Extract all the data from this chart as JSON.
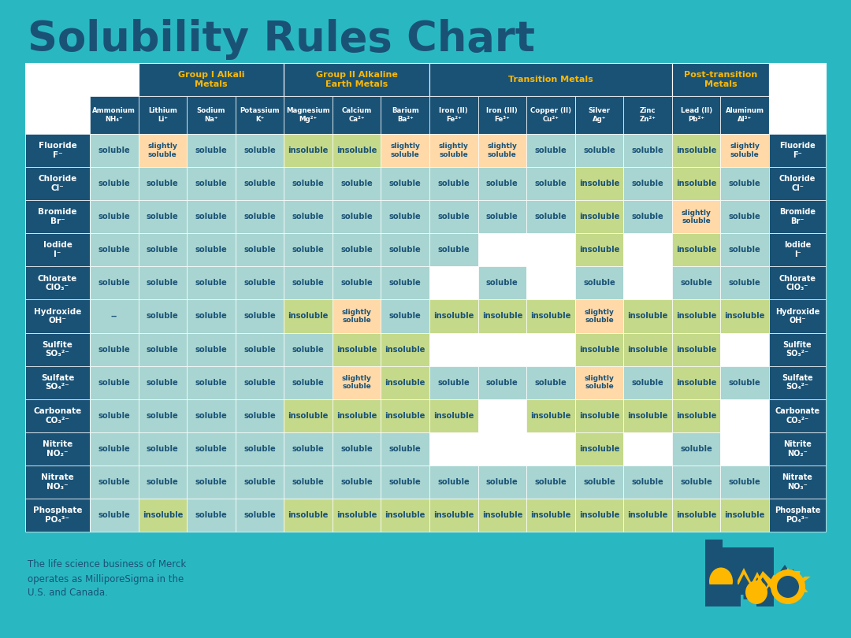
{
  "title": "Solubility Rules Chart",
  "bg_color": "#29B8C2",
  "header_blue": "#1A5276",
  "header_gold": "#FFB800",
  "cell_soluble_bg": "#A8D5D1",
  "cell_insoluble_bg": "#C5D98A",
  "cell_slightly_bg": "#FFD9A8",
  "cell_empty_bg": "#FFFFFF",
  "cell_text_color": "#1A5276",
  "title_color": "#1A5276",
  "footer_text_color": "#1A5276",
  "col_headers": [
    "Ammonium\nNH₄⁺",
    "Lithium\nLi⁺",
    "Sodium\nNa⁺",
    "Potassium\nK⁺",
    "Magnesium\nMg²⁺",
    "Calcium\nCa²⁺",
    "Barium\nBa²⁺",
    "Iron (II)\nFe²⁺",
    "Iron (III)\nFe³⁺",
    "Copper (II)\nCu²⁺",
    "Silver\nAg⁺",
    "Zinc\nZn²⁺",
    "Lead (II)\nPb²⁺",
    "Aluminum\nAl³⁺"
  ],
  "row_headers": [
    "Fluoride\nF⁻",
    "Chloride\nCl⁻",
    "Bromide\nBr⁻",
    "Iodide\nI⁻",
    "Chlorate\nClO₃⁻",
    "Hydroxide\nOH⁻",
    "Sulfite\nSO₃²⁻",
    "Sulfate\nSO₄²⁻",
    "Carbonate\nCO₃²⁻",
    "Nitrite\nNO₂⁻",
    "Nitrate\nNO₃⁻",
    "Phosphate\nPO₄³⁻"
  ],
  "data": [
    [
      "soluble",
      "slightly\nsoluble",
      "soluble",
      "soluble",
      "insoluble",
      "insoluble",
      "slightly\nsoluble",
      "slightly\nsoluble",
      "slightly\nsoluble",
      "soluble",
      "soluble",
      "soluble",
      "insoluble",
      "slightly\nsoluble"
    ],
    [
      "soluble",
      "soluble",
      "soluble",
      "soluble",
      "soluble",
      "soluble",
      "soluble",
      "soluble",
      "soluble",
      "soluble",
      "insoluble",
      "soluble",
      "insoluble",
      "soluble"
    ],
    [
      "soluble",
      "soluble",
      "soluble",
      "soluble",
      "soluble",
      "soluble",
      "soluble",
      "soluble",
      "soluble",
      "soluble",
      "insoluble",
      "soluble",
      "slightly\nsoluble",
      "soluble"
    ],
    [
      "soluble",
      "soluble",
      "soluble",
      "soluble",
      "soluble",
      "soluble",
      "soluble",
      "soluble",
      "",
      "",
      "insoluble",
      "",
      "insoluble",
      "soluble"
    ],
    [
      "soluble",
      "soluble",
      "soluble",
      "soluble",
      "soluble",
      "soluble",
      "soluble",
      "",
      "soluble",
      "",
      "soluble",
      "",
      "soluble",
      "soluble"
    ],
    [
      "--",
      "soluble",
      "soluble",
      "soluble",
      "insoluble",
      "slightly\nsoluble",
      "soluble",
      "insoluble",
      "insoluble",
      "insoluble",
      "slightly\nsoluble",
      "insoluble",
      "insoluble",
      "insoluble"
    ],
    [
      "soluble",
      "soluble",
      "soluble",
      "soluble",
      "soluble",
      "insoluble",
      "insoluble",
      "",
      "",
      "",
      "insoluble",
      "insoluble",
      "insoluble",
      ""
    ],
    [
      "soluble",
      "soluble",
      "soluble",
      "soluble",
      "soluble",
      "slightly\nsoluble",
      "insoluble",
      "soluble",
      "soluble",
      "soluble",
      "slightly\nsoluble",
      "soluble",
      "insoluble",
      "soluble"
    ],
    [
      "soluble",
      "soluble",
      "soluble",
      "soluble",
      "insoluble",
      "insoluble",
      "insoluble",
      "insoluble",
      "",
      "insoluble",
      "insoluble",
      "insoluble",
      "insoluble",
      ""
    ],
    [
      "soluble",
      "soluble",
      "soluble",
      "soluble",
      "soluble",
      "soluble",
      "soluble",
      "",
      "",
      "",
      "insoluble",
      "",
      "soluble",
      ""
    ],
    [
      "soluble",
      "soluble",
      "soluble",
      "soluble",
      "soluble",
      "soluble",
      "soluble",
      "soluble",
      "soluble",
      "soluble",
      "soluble",
      "soluble",
      "soluble",
      "soluble"
    ],
    [
      "soluble",
      "insoluble",
      "soluble",
      "soluble",
      "insoluble",
      "insoluble",
      "insoluble",
      "insoluble",
      "insoluble",
      "insoluble",
      "insoluble",
      "insoluble",
      "insoluble",
      "insoluble"
    ]
  ],
  "footer_text": "The life science business of Merck\noperates as MilliporeSigma in the\nU.S. and Canada."
}
